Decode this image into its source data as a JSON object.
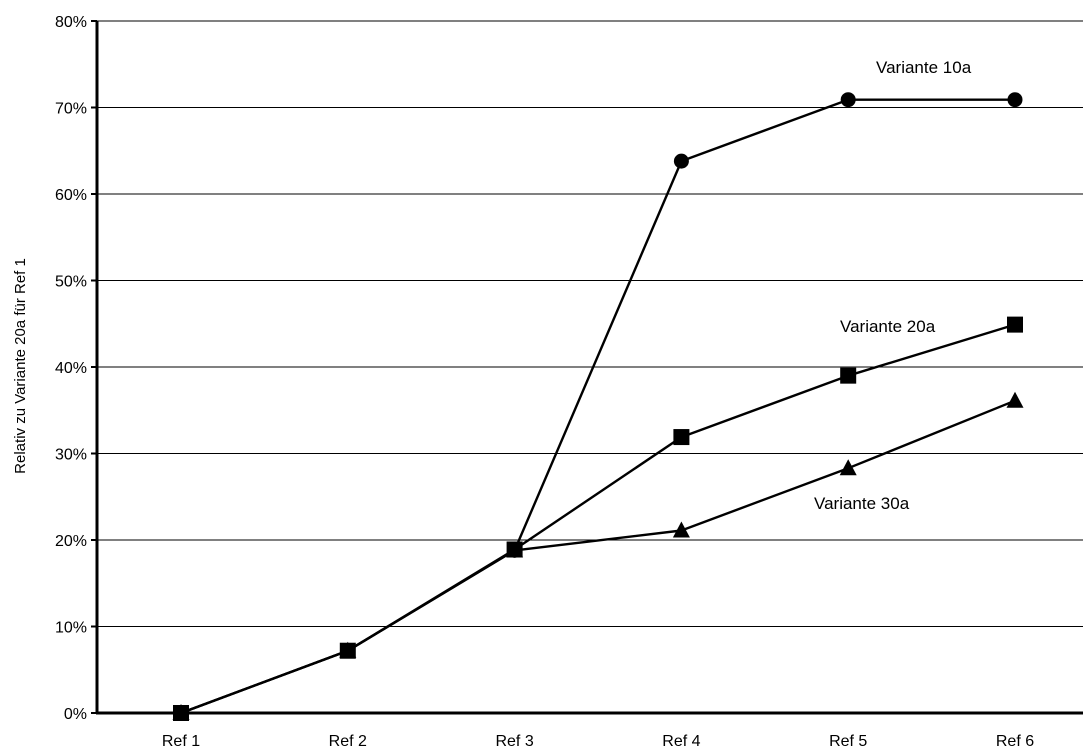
{
  "chart_data": {
    "type": "line",
    "title": "",
    "xlabel": "",
    "ylabel": "Relativ zu Variante 20a für Ref 1",
    "categories": [
      "Ref 1",
      "Ref 2",
      "Ref 3",
      "Ref 4",
      "Ref 5",
      "Ref 6"
    ],
    "ylim": [
      0,
      0.8
    ],
    "yticks": [
      0,
      0.1,
      0.2,
      0.3,
      0.4,
      0.5,
      0.6,
      0.7,
      0.8
    ],
    "ytick_labels": [
      "0%",
      "10%",
      "20%",
      "30%",
      "40%",
      "50%",
      "60%",
      "70%",
      "80%"
    ],
    "grid": true,
    "legend": "none (series labelled inline)",
    "series": [
      {
        "name": "Variante 10a",
        "marker": "circle",
        "values": [
          0.0,
          0.072,
          0.188,
          0.638,
          0.709,
          0.709
        ]
      },
      {
        "name": "Variante 20a",
        "marker": "square",
        "values": [
          0.0,
          0.072,
          0.189,
          0.319,
          0.39,
          0.449
        ]
      },
      {
        "name": "Variante 30a",
        "marker": "triangle",
        "values": [
          0.0,
          0.072,
          0.188,
          0.211,
          0.283,
          0.361
        ]
      }
    ],
    "colors": {
      "line": "#000000",
      "grid": "#000000",
      "background": "#ffffff"
    }
  }
}
